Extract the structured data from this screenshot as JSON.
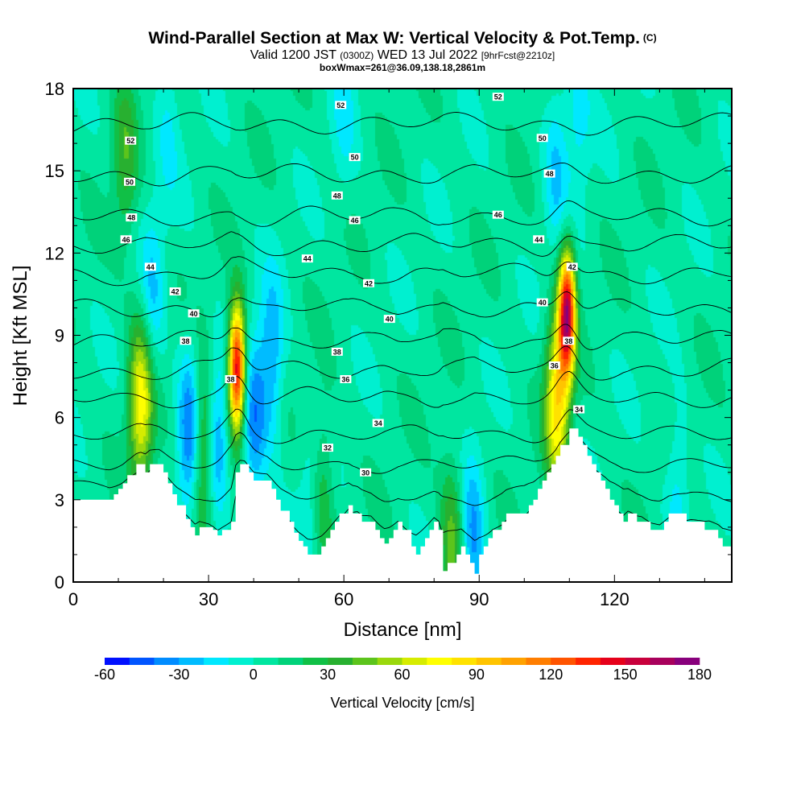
{
  "header": {
    "title": "Wind-Parallel Section at Max W: Vertical Velocity & Pot.Temp.",
    "title_mark": "(C)",
    "valid_prefix": "Valid 1200 JST",
    "valid_utc": "(0300Z)",
    "valid_date": "WED 13 Jul 2022",
    "forecast": "[9hrFcst@2210z]",
    "box_info": "boxWmax=261@36.09,138.18,2861m"
  },
  "chart_data": {
    "type": "heatmap",
    "title": "Wind-Parallel Section at Max W: Vertical Velocity & Pot.Temp.",
    "xlabel": "Distance [nm]",
    "ylabel": "Height [Kft MSL]",
    "xlim": [
      0,
      146
    ],
    "ylim": [
      0,
      18
    ],
    "x_ticks": [
      0,
      30,
      60,
      90,
      120
    ],
    "y_ticks": [
      0,
      3,
      6,
      9,
      12,
      15,
      18
    ],
    "grid": false,
    "colorbar": {
      "label": "Vertical Velocity [cm/s]",
      "ticks": [
        -60,
        -30,
        0,
        30,
        60,
        90,
        120,
        150,
        180
      ],
      "levels": [
        -60,
        -50,
        -40,
        -30,
        -20,
        -10,
        0,
        10,
        20,
        30,
        40,
        50,
        60,
        70,
        80,
        90,
        100,
        110,
        120,
        130,
        140,
        150,
        160,
        170,
        180
      ],
      "colors": [
        "#0010ff",
        "#0055ff",
        "#008cff",
        "#00bcff",
        "#00e8ff",
        "#00f0d0",
        "#00e6a0",
        "#00d27a",
        "#10c046",
        "#28b030",
        "#5cc41c",
        "#9ad80c",
        "#d6ec00",
        "#ffff00",
        "#ffe200",
        "#ffc400",
        "#ffa200",
        "#ff7e00",
        "#ff5400",
        "#ff2400",
        "#e6001a",
        "#c8003c",
        "#a8005c",
        "#88007c",
        "#6a0094"
      ]
    },
    "terrain": {
      "x": [
        0,
        8,
        9,
        10,
        11,
        12,
        14,
        15,
        16,
        17,
        19,
        20,
        21,
        22,
        23,
        25,
        26,
        27,
        28,
        30,
        31,
        32,
        33,
        35,
        36,
        37,
        38,
        39,
        40,
        43,
        44,
        45,
        46,
        48,
        49,
        50,
        51,
        52,
        53,
        55,
        56,
        57,
        58,
        59,
        60,
        61,
        62,
        63,
        64,
        66,
        67,
        68,
        69,
        70,
        71,
        72,
        73,
        75,
        76,
        77,
        78,
        79,
        80,
        81,
        82,
        83,
        85,
        86,
        87,
        88,
        89,
        90,
        91,
        92,
        93,
        95,
        96,
        98,
        100,
        101,
        102,
        103,
        104,
        105,
        106,
        107,
        108,
        110,
        111,
        112,
        113,
        114,
        115,
        116,
        117,
        118,
        119,
        120,
        121,
        122,
        123,
        125,
        126,
        128,
        130,
        131,
        132,
        134,
        136,
        137,
        140,
        141,
        143,
        144,
        146
      ],
      "y": [
        3,
        3,
        3.2,
        3.4,
        3.6,
        3.9,
        4.3,
        4.3,
        4.0,
        4.3,
        4.3,
        4.0,
        3.6,
        3.2,
        2.8,
        2.3,
        2.0,
        1.7,
        2.0,
        2.0,
        1.9,
        1.7,
        1.9,
        2.2,
        4.0,
        4.3,
        4.3,
        4.0,
        3.7,
        3.7,
        3.4,
        3.0,
        2.6,
        2.2,
        1.8,
        1.5,
        1.3,
        1.0,
        1.0,
        1.3,
        1.6,
        1.9,
        2.2,
        2.5,
        2.5,
        2.8,
        2.5,
        2.5,
        2.2,
        2.2,
        1.9,
        1.6,
        1.4,
        1.6,
        1.9,
        2.2,
        1.9,
        1.3,
        1.0,
        1.3,
        1.6,
        1.9,
        2.2,
        1.9,
        0.4,
        0.7,
        1.0,
        1.3,
        1.0,
        0.7,
        0.3,
        1.0,
        1.3,
        1.6,
        1.9,
        2.2,
        2.5,
        2.5,
        2.5,
        2.8,
        3.0,
        3.4,
        3.7,
        4.0,
        4.3,
        4.6,
        5.0,
        5.6,
        5.6,
        5.3,
        5.0,
        4.6,
        4.3,
        4.0,
        3.7,
        3.4,
        3.0,
        2.8,
        2.5,
        2.2,
        2.5,
        2.2,
        2.2,
        1.9,
        1.9,
        2.2,
        2.5,
        2.5,
        2.2,
        2.2,
        1.9,
        1.9,
        1.6,
        1.3,
        1.3
      ]
    },
    "updraft_cores": [
      {
        "x": 11.5,
        "y": 15.5,
        "peak_cm_s": 30
      },
      {
        "x": 15,
        "y": 6.5,
        "peak_cm_s": 70
      },
      {
        "x": 29,
        "y": 5.0,
        "peak_cm_s": 60
      },
      {
        "x": 36.3,
        "y": 7.8,
        "peak_cm_s": 150
      },
      {
        "x": 55,
        "y": 3.2,
        "peak_cm_s": 30
      },
      {
        "x": 84,
        "y": 1.4,
        "peak_cm_s": 40
      },
      {
        "x": 109.5,
        "y": 9.8,
        "peak_cm_s": 150
      },
      {
        "x": 107.3,
        "y": 6.6,
        "peak_cm_s": 80
      }
    ],
    "downdraft_cores": [
      {
        "x": 26,
        "y": 5.5,
        "peak_cm_s": -50
      },
      {
        "x": 31.5,
        "y": 5.2,
        "peak_cm_s": -45
      },
      {
        "x": 40,
        "y": 5.8,
        "peak_cm_s": -40
      },
      {
        "x": 44,
        "y": 8.0,
        "peak_cm_s": -35
      },
      {
        "x": 88.5,
        "y": 1.2,
        "peak_cm_s": -40
      },
      {
        "x": 17.5,
        "y": 10.5,
        "peak_cm_s": -25
      },
      {
        "x": 107,
        "y": 15.3,
        "peak_cm_s": -25
      },
      {
        "x": 112,
        "y": 17.2,
        "peak_cm_s": -20
      },
      {
        "x": 21,
        "y": 16.8,
        "peak_cm_s": -15
      },
      {
        "x": 53,
        "y": 3.0,
        "peak_cm_s": -20
      },
      {
        "x": 60,
        "y": 17.2,
        "peak_cm_s": -15
      },
      {
        "x": 134,
        "y": 3.6,
        "peak_cm_s": -20
      }
    ],
    "theta_contours": [
      {
        "level": 28,
        "y": 2.0
      },
      {
        "level": 30,
        "y": 3.6
      },
      {
        "level": 32,
        "y": 4.8
      },
      {
        "level": 34,
        "y": 5.9
      },
      {
        "level": 36,
        "y": 7.2
      },
      {
        "level": 38,
        "y": 8.2
      },
      {
        "level": 40,
        "y": 9.2
      },
      {
        "level": 42,
        "y": 10.3
      },
      {
        "level": 44,
        "y": 11.5
      },
      {
        "level": 46,
        "y": 12.5
      },
      {
        "level": 48,
        "y": 13.5
      },
      {
        "level": 50,
        "y": 15.0
      },
      {
        "level": 52,
        "y": 16.8
      }
    ],
    "contour_labels": [
      {
        "text": "52",
        "x": 12.7,
        "y": 16.1
      },
      {
        "text": "50",
        "x": 12.5,
        "y": 14.6
      },
      {
        "text": "48",
        "x": 12.9,
        "y": 13.3
      },
      {
        "text": "46",
        "x": 11.7,
        "y": 12.5
      },
      {
        "text": "44",
        "x": 17.1,
        "y": 11.5
      },
      {
        "text": "42",
        "x": 22.6,
        "y": 10.6
      },
      {
        "text": "40",
        "x": 26.7,
        "y": 9.8
      },
      {
        "text": "38",
        "x": 24.9,
        "y": 8.8
      },
      {
        "text": "38",
        "x": 34.9,
        "y": 7.4
      },
      {
        "text": "52",
        "x": 59.3,
        "y": 17.4
      },
      {
        "text": "50",
        "x": 62.4,
        "y": 15.5
      },
      {
        "text": "48",
        "x": 58.5,
        "y": 14.1
      },
      {
        "text": "46",
        "x": 62.4,
        "y": 13.2
      },
      {
        "text": "44",
        "x": 51.9,
        "y": 11.8
      },
      {
        "text": "42",
        "x": 65.5,
        "y": 10.9
      },
      {
        "text": "40",
        "x": 70.1,
        "y": 9.6
      },
      {
        "text": "38",
        "x": 58.5,
        "y": 8.4
      },
      {
        "text": "36",
        "x": 60.4,
        "y": 7.4
      },
      {
        "text": "34",
        "x": 67.6,
        "y": 5.8
      },
      {
        "text": "32",
        "x": 56.4,
        "y": 4.9
      },
      {
        "text": "30",
        "x": 64.8,
        "y": 4.0
      },
      {
        "text": "52",
        "x": 94.2,
        "y": 17.7
      },
      {
        "text": "50",
        "x": 104.0,
        "y": 16.2
      },
      {
        "text": "48",
        "x": 105.6,
        "y": 14.9
      },
      {
        "text": "46",
        "x": 94.2,
        "y": 13.4
      },
      {
        "text": "44",
        "x": 103.2,
        "y": 12.5
      },
      {
        "text": "42",
        "x": 110.6,
        "y": 11.5
      },
      {
        "text": "40",
        "x": 104.0,
        "y": 10.2
      },
      {
        "text": "38",
        "x": 109.8,
        "y": 8.8
      },
      {
        "text": "36",
        "x": 106.7,
        "y": 7.9
      },
      {
        "text": "34",
        "x": 112.1,
        "y": 6.3
      }
    ]
  }
}
